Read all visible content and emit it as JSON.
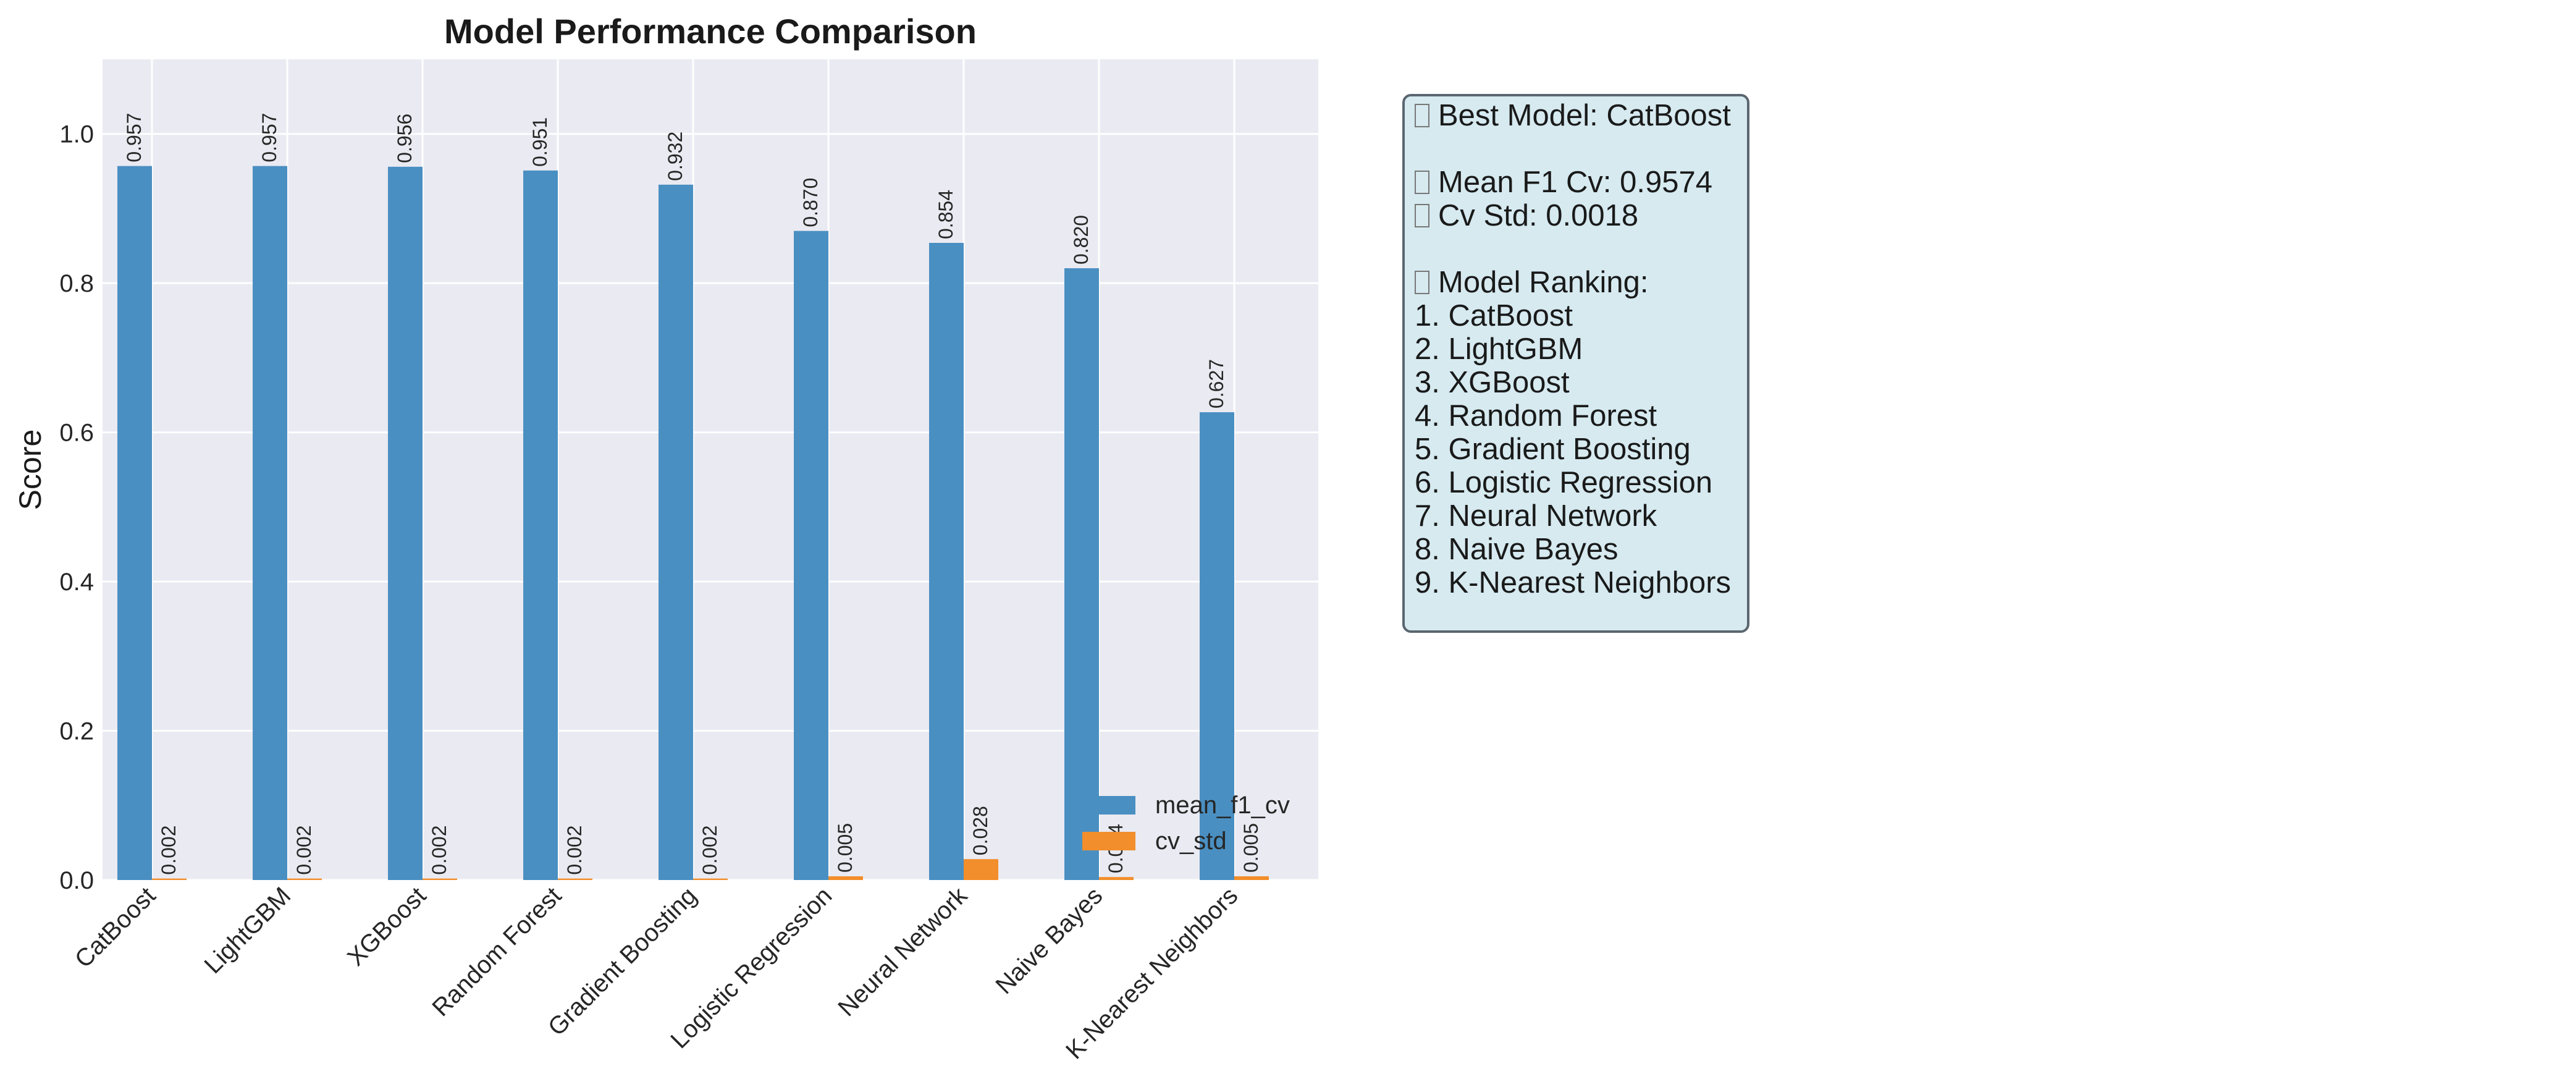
{
  "colors": {
    "mean": "#4a8fc2",
    "std": "#f28e2b",
    "plot_bg": "#eaeaf2",
    "grid": "#ffffff",
    "box_bg": "#d6eaf0",
    "box_border": "#5b6670"
  },
  "chart_data": {
    "type": "bar",
    "title": "Model Performance Comparison",
    "xlabel": "",
    "ylabel": "Score",
    "ylim": [
      0,
      1.1
    ],
    "yticks": [
      "0.0",
      "0.2",
      "0.4",
      "0.6",
      "0.8",
      "1.0"
    ],
    "grid": true,
    "legend_position": "lower right",
    "categories": [
      "CatBoost",
      "LightGBM",
      "XGBoost",
      "Random Forest",
      "Gradient Boosting",
      "Logistic Regression",
      "Neural Network",
      "Naive Bayes",
      "K-Nearest Neighbors"
    ],
    "series": [
      {
        "name": "mean_f1_cv",
        "values": [
          0.957,
          0.957,
          0.956,
          0.951,
          0.932,
          0.87,
          0.854,
          0.82,
          0.627
        ],
        "labels": [
          "0.957",
          "0.957",
          "0.956",
          "0.951",
          "0.932",
          "0.870",
          "0.854",
          "0.820",
          "0.627"
        ]
      },
      {
        "name": "cv_std",
        "values": [
          0.002,
          0.002,
          0.002,
          0.002,
          0.002,
          0.005,
          0.028,
          0.004,
          0.005
        ],
        "labels": [
          "0.002",
          "0.002",
          "0.002",
          "0.002",
          "0.002",
          "0.005",
          "0.028",
          "0.004",
          "0.005"
        ]
      }
    ]
  },
  "summary": {
    "best_model": "Best Model: CatBoost",
    "mean_f1": "Mean F1 Cv: 0.9574",
    "cv_std": "Cv Std: 0.0018",
    "ranking_header": "Model Ranking:",
    "ranking": [
      "1. CatBoost",
      "2. LightGBM",
      "3. XGBoost",
      "4. Random Forest",
      "5. Gradient Boosting",
      "6. Logistic Regression",
      "7. Neural Network",
      "8. Naive Bayes",
      "9. K-Nearest Neighbors"
    ]
  }
}
